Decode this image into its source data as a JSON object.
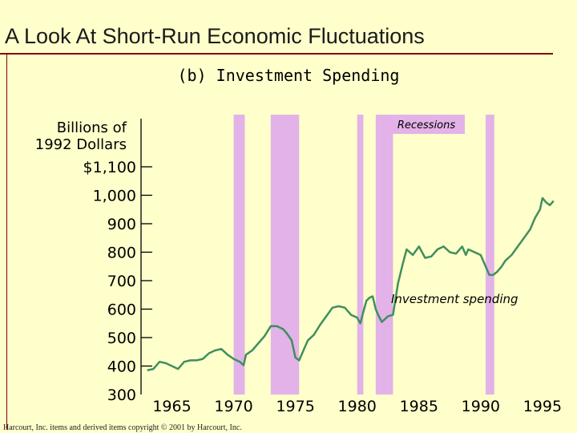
{
  "slide": {
    "title": "A Look At Short-Run Economic Fluctuations",
    "subtitle": "(b) Investment Spending",
    "footer": "Harcourt, Inc. items and derived items copyright © 2001 by Harcourt, Inc."
  },
  "colors": {
    "background": "#ffffcc",
    "recession_band": "#e2b2e8",
    "series_line": "#3f8f5c",
    "title_rule": "#800000"
  },
  "chart_data": {
    "type": "line",
    "title": "(b) Investment Spending",
    "ylabel_lines": [
      "Billions of",
      "1992 Dollars"
    ],
    "xlim": [
      1962.5,
      1996.5
    ],
    "ylim": [
      300,
      1100
    ],
    "xticks": [
      1965,
      1970,
      1975,
      1980,
      1985,
      1990,
      1995
    ],
    "yticks": [
      {
        "value": 1100,
        "label": "$1,100"
      },
      {
        "value": 1000,
        "label": "1,000"
      },
      {
        "value": 900,
        "label": "900"
      },
      {
        "value": 800,
        "label": "800"
      },
      {
        "value": 700,
        "label": "700"
      },
      {
        "value": 600,
        "label": "600"
      },
      {
        "value": 500,
        "label": "500"
      },
      {
        "value": 400,
        "label": "400"
      },
      {
        "value": 300,
        "label": "300"
      }
    ],
    "legend_recessions": "Recessions",
    "series_annotation": "Investment spending",
    "recessions": [
      [
        1970.0,
        1970.9
      ],
      [
        1973.0,
        1975.3
      ],
      [
        1980.0,
        1980.5
      ],
      [
        1981.5,
        1982.9
      ],
      [
        1990.4,
        1991.1
      ]
    ],
    "series": [
      {
        "name": "Investment spending",
        "x": [
          1963.0,
          1963.5,
          1964.0,
          1964.5,
          1965.0,
          1965.5,
          1966.0,
          1966.5,
          1967.0,
          1967.5,
          1968.0,
          1968.5,
          1969.0,
          1969.5,
          1970.0,
          1970.5,
          1970.8,
          1971.0,
          1971.5,
          1972.0,
          1972.5,
          1973.0,
          1973.5,
          1974.0,
          1974.3,
          1974.7,
          1975.0,
          1975.3,
          1975.7,
          1976.0,
          1976.5,
          1977.0,
          1977.5,
          1978.0,
          1978.5,
          1979.0,
          1979.5,
          1980.0,
          1980.25,
          1980.5,
          1980.75,
          1981.0,
          1981.25,
          1981.5,
          1981.75,
          1982.0,
          1982.5,
          1982.9,
          1983.3,
          1983.7,
          1984.0,
          1984.5,
          1985.0,
          1985.5,
          1986.0,
          1986.5,
          1987.0,
          1987.5,
          1988.0,
          1988.5,
          1988.8,
          1989.0,
          1989.5,
          1990.0,
          1990.4,
          1990.7,
          1991.0,
          1991.3,
          1991.7,
          1992.0,
          1992.5,
          1993.0,
          1993.5,
          1994.0,
          1994.4,
          1994.8,
          1995.0,
          1995.3,
          1995.6,
          1995.9
        ],
        "y": [
          385,
          390,
          415,
          410,
          400,
          390,
          415,
          420,
          420,
          425,
          445,
          455,
          460,
          440,
          425,
          415,
          403,
          440,
          455,
          480,
          505,
          540,
          540,
          530,
          515,
          490,
          430,
          420,
          460,
          490,
          510,
          545,
          575,
          605,
          610,
          605,
          580,
          570,
          550,
          590,
          630,
          640,
          645,
          600,
          575,
          555,
          575,
          580,
          690,
          760,
          810,
          790,
          820,
          780,
          785,
          810,
          820,
          800,
          795,
          820,
          790,
          810,
          800,
          790,
          750,
          720,
          720,
          730,
          750,
          770,
          790,
          820,
          850,
          880,
          920,
          950,
          990,
          975,
          965,
          980
        ]
      }
    ]
  }
}
